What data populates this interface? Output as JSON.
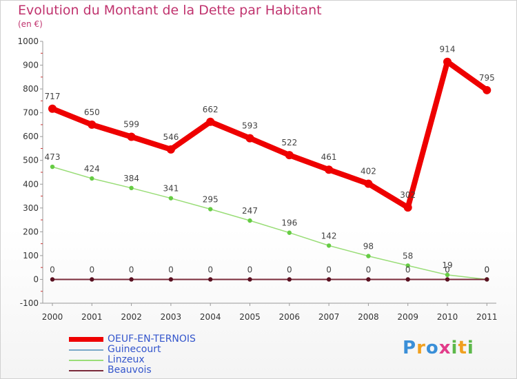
{
  "chart_data": {
    "type": "line",
    "title": "Evolution du Montant de la Dette par Habitant",
    "subtitle": "(en €)",
    "x": [
      "2000",
      "2001",
      "2002",
      "2003",
      "2004",
      "2005",
      "2006",
      "2007",
      "2008",
      "2009",
      "2010",
      "2011"
    ],
    "ylim": [
      -100,
      1000
    ],
    "yticks": [
      "-100",
      "0",
      "100",
      "200",
      "300",
      "400",
      "500",
      "600",
      "700",
      "800",
      "900",
      "1000"
    ],
    "grid": false,
    "legend_position": "bottom-left",
    "series": [
      {
        "name": "OEUF-EN-TERNOIS",
        "color": "#ee0000",
        "values": [
          717,
          650,
          599,
          546,
          662,
          593,
          522,
          461,
          402,
          302,
          914,
          795
        ],
        "labels": [
          "717",
          "650",
          "599",
          "546",
          "662",
          "593",
          "522",
          "461",
          "402",
          "302",
          "914",
          "795"
        ]
      },
      {
        "name": "Guinecourt",
        "color": "#7aa8c8",
        "values": [
          0,
          0,
          0,
          0,
          0,
          0,
          0,
          0,
          0,
          0,
          0,
          0
        ],
        "labels": []
      },
      {
        "name": "Linzeux",
        "color": "#99dd77",
        "values": [
          473,
          424,
          384,
          341,
          295,
          247,
          196,
          142,
          98,
          58,
          19,
          0
        ],
        "labels": [
          "473",
          "424",
          "384",
          "341",
          "295",
          "247",
          "196",
          "142",
          "98",
          "58",
          "19",
          "0"
        ]
      },
      {
        "name": "Beauvois",
        "color": "#7a2a3a",
        "values": [
          0,
          0,
          0,
          0,
          0,
          0,
          0,
          0,
          0,
          0,
          0,
          0
        ],
        "labels": [
          "0",
          "0",
          "0",
          "0",
          "0",
          "0",
          "0",
          "0",
          "0",
          "0",
          "0",
          "0"
        ]
      }
    ]
  },
  "logo": {
    "letters": [
      "P",
      "r",
      "o",
      "x",
      "i",
      "t",
      "i"
    ]
  }
}
